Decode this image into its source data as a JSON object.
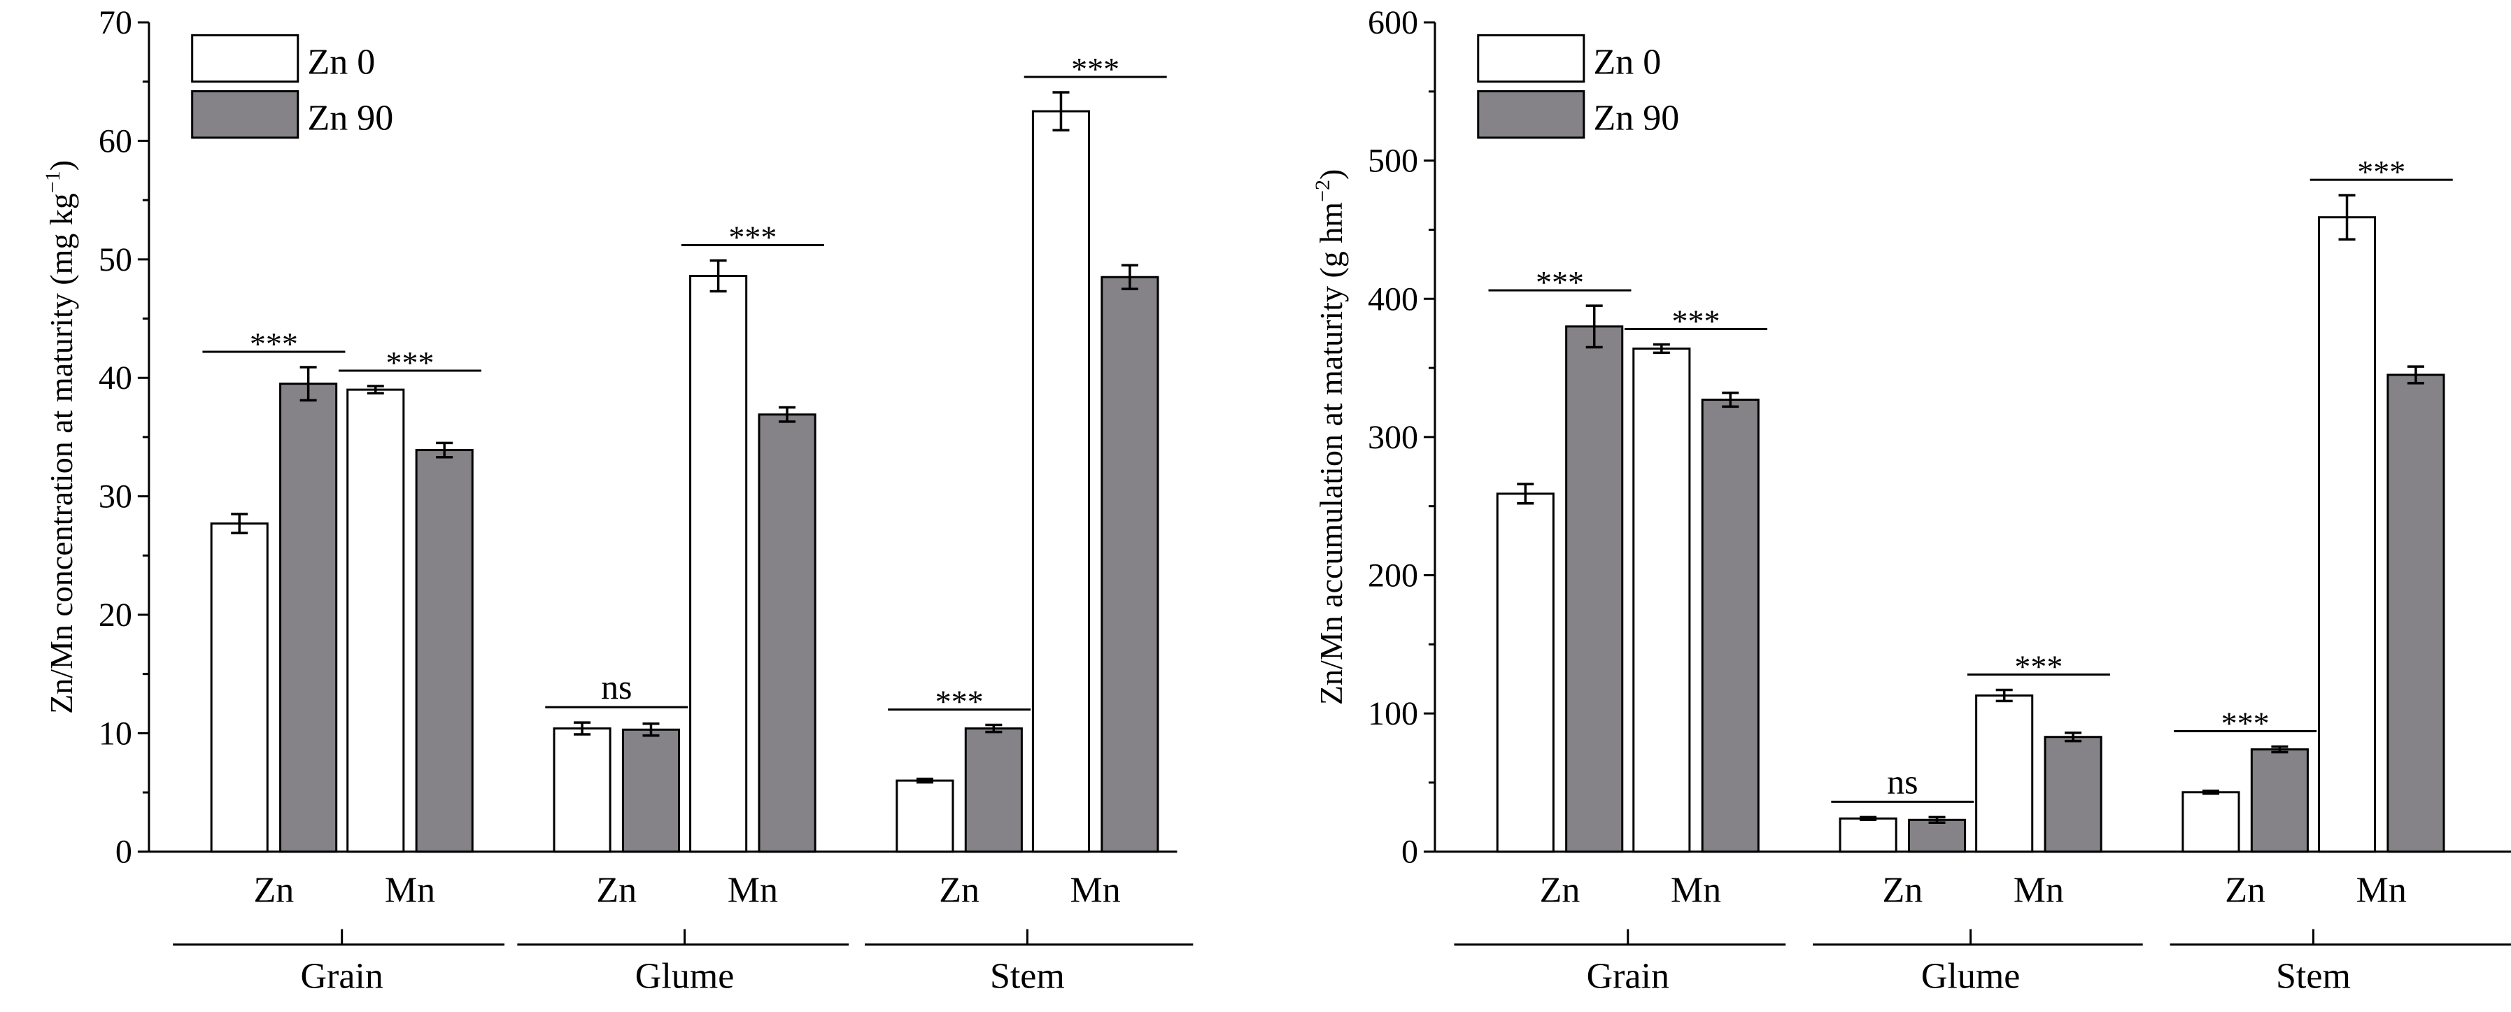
{
  "colors": {
    "zn0_fill": "#ffffff",
    "zn90_fill": "#858387",
    "stroke": "#000000"
  },
  "chart_data": [
    {
      "type": "bar",
      "ylabel": "Zn/Mn concentration at maturity (mg kg",
      "ylabel_sup": "−1",
      "ylabel_end": ")",
      "ylim": [
        0,
        70
      ],
      "yticks": [
        0,
        10,
        20,
        30,
        40,
        50,
        60,
        70
      ],
      "minor_ticks": true,
      "groups": [
        "Grain",
        "Glume",
        "Stem"
      ],
      "subcategories": [
        "Zn",
        "Mn",
        "Zn",
        "Mn",
        "Zn",
        "Mn"
      ],
      "legend": {
        "position": "top-left",
        "entries": [
          "Zn 0",
          "Zn 90"
        ]
      },
      "series": [
        {
          "name": "Zn 0",
          "values": [
            27.7,
            39.0,
            10.4,
            48.6,
            6.0,
            62.5
          ],
          "errors": [
            0.8,
            0.3,
            0.5,
            1.3,
            0.15,
            1.6
          ]
        },
        {
          "name": "Zn 90",
          "values": [
            39.5,
            33.9,
            10.3,
            36.9,
            10.4,
            48.5
          ],
          "errors": [
            1.4,
            0.6,
            0.5,
            0.6,
            0.3,
            1.0
          ]
        }
      ],
      "significance": [
        "***",
        "***",
        "ns",
        "***",
        "***",
        "***"
      ]
    },
    {
      "type": "bar",
      "ylabel": "Zn/Mn accumulation at maturity (g hm",
      "ylabel_sup": "−2",
      "ylabel_end": ")",
      "ylim": [
        0,
        600
      ],
      "yticks": [
        0,
        100,
        200,
        300,
        400,
        500,
        600
      ],
      "minor_ticks": true,
      "groups": [
        "Grain",
        "Glume",
        "Stem"
      ],
      "subcategories": [
        "Zn",
        "Mn",
        "Zn",
        "Mn",
        "Zn",
        "Mn"
      ],
      "legend": {
        "position": "top-left",
        "entries": [
          "Zn 0",
          "Zn 90"
        ]
      },
      "series": [
        {
          "name": "Zn 0",
          "values": [
            259,
            364,
            24,
            113,
            43,
            459
          ],
          "errors": [
            7,
            3,
            1,
            4,
            1,
            16
          ]
        },
        {
          "name": "Zn 90",
          "values": [
            380,
            327,
            23,
            83,
            74,
            345
          ],
          "errors": [
            15,
            5,
            2,
            3,
            2,
            6
          ]
        }
      ],
      "significance": [
        "***",
        "***",
        "ns",
        "***",
        "***",
        "***"
      ]
    }
  ]
}
